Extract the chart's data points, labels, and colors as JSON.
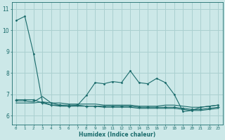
{
  "xlabel": "Humidex (Indice chaleur)",
  "bg_color": "#cce8e8",
  "grid_color": "#aad0d0",
  "line_color": "#1a6b6b",
  "xlim": [
    -0.5,
    23.5
  ],
  "ylim": [
    5.6,
    11.3
  ],
  "yticks": [
    6,
    7,
    8,
    9,
    10,
    11
  ],
  "xticks": [
    0,
    1,
    2,
    3,
    4,
    5,
    6,
    7,
    8,
    9,
    10,
    11,
    12,
    13,
    14,
    15,
    16,
    17,
    18,
    19,
    20,
    21,
    22,
    23
  ],
  "series1_x": [
    0,
    1,
    2,
    3,
    4,
    5,
    6,
    7,
    8,
    9,
    10,
    11,
    12,
    13,
    14,
    15,
    16,
    17,
    18,
    19,
    20,
    21,
    22,
    23
  ],
  "series1_y": [
    10.45,
    10.65,
    8.9,
    6.65,
    6.6,
    6.5,
    6.5,
    6.5,
    6.95,
    7.55,
    7.5,
    7.6,
    7.55,
    8.1,
    7.55,
    7.5,
    7.75,
    7.55,
    7.0,
    6.2,
    6.25,
    6.4,
    6.45,
    6.5
  ],
  "series2_x": [
    0,
    1,
    2,
    3,
    4,
    5,
    6,
    7,
    8,
    9,
    10,
    11,
    12,
    13,
    14,
    15,
    16,
    17,
    18,
    19,
    20,
    21,
    22,
    23
  ],
  "series2_y": [
    6.75,
    6.75,
    6.75,
    6.6,
    6.5,
    6.5,
    6.45,
    6.5,
    6.45,
    6.45,
    6.45,
    6.45,
    6.45,
    6.45,
    6.4,
    6.4,
    6.4,
    6.4,
    6.4,
    6.35,
    6.3,
    6.3,
    6.35,
    6.4
  ],
  "series3_x": [
    0,
    1,
    2,
    3,
    4,
    5,
    6,
    7,
    8,
    9,
    10,
    11,
    12,
    13,
    14,
    15,
    16,
    17,
    18,
    19,
    20,
    21,
    22,
    23
  ],
  "series3_y": [
    6.7,
    6.7,
    6.65,
    6.9,
    6.6,
    6.6,
    6.55,
    6.55,
    6.55,
    6.55,
    6.5,
    6.5,
    6.5,
    6.5,
    6.45,
    6.45,
    6.45,
    6.5,
    6.5,
    6.45,
    6.4,
    6.4,
    6.45,
    6.5
  ],
  "series4_x": [
    0,
    1,
    2,
    3,
    4,
    5,
    6,
    7,
    8,
    9,
    10,
    11,
    12,
    13,
    14,
    15,
    16,
    17,
    18,
    19,
    20,
    21,
    22,
    23
  ],
  "series4_y": [
    6.6,
    6.6,
    6.6,
    6.65,
    6.5,
    6.45,
    6.45,
    6.45,
    6.45,
    6.45,
    6.4,
    6.4,
    6.4,
    6.4,
    6.35,
    6.35,
    6.35,
    6.35,
    6.35,
    6.3,
    6.25,
    6.25,
    6.3,
    6.35
  ]
}
